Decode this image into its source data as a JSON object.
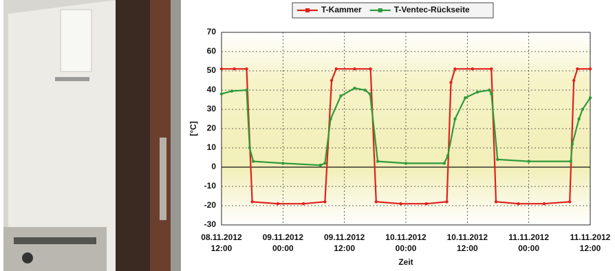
{
  "chart_data": {
    "type": "line",
    "ylabel": "[°C]",
    "xlabel": "Zeit",
    "ylim": [
      -30,
      70
    ],
    "yticks": [
      -30,
      -20,
      -10,
      0,
      10,
      20,
      30,
      40,
      50,
      60,
      70
    ],
    "xlim": [
      "2012-11-08T12:00",
      "2012-11-11T12:00"
    ],
    "xticks": [
      {
        "value": "2012-11-08T12:00",
        "label": "08.11.2012\n12:00"
      },
      {
        "value": "2012-11-09T00:00",
        "label": "09.11.2012\n00:00"
      },
      {
        "value": "2012-11-09T12:00",
        "label": "09.11.2012\n12:00"
      },
      {
        "value": "2012-11-10T00:00",
        "label": "10.11.2012\n00:00"
      },
      {
        "value": "2012-11-10T12:00",
        "label": "10.11.2012\n12:00"
      },
      {
        "value": "2012-11-11T00:00",
        "label": "11.11.2012\n00:00"
      },
      {
        "value": "2012-11-11T12:00",
        "label": "11.11.2012\n12:00"
      }
    ],
    "grid": true,
    "series": [
      {
        "name": "T-Kammer",
        "color": "#e0201c",
        "x": [
          "2012-11-08T12:00",
          "2012-11-08T14:30",
          "2012-11-08T16:54",
          "2012-11-08T18:00",
          "2012-11-08T23:00",
          "2012-11-09T04:00",
          "2012-11-09T08:12",
          "2012-11-09T09:30",
          "2012-11-09T10:24",
          "2012-11-09T14:00",
          "2012-11-09T17:06",
          "2012-11-09T18:12",
          "2012-11-09T23:00",
          "2012-11-10T04:00",
          "2012-11-10T08:00",
          "2012-11-10T08:48",
          "2012-11-10T09:36",
          "2012-11-10T13:00",
          "2012-11-10T16:42",
          "2012-11-10T17:36",
          "2012-11-10T22:00",
          "2012-11-11T03:00",
          "2012-11-11T08:00",
          "2012-11-11T08:48",
          "2012-11-11T09:30",
          "2012-11-11T12:00"
        ],
        "values": [
          51,
          51,
          51,
          -18,
          -19,
          -19,
          -18,
          45,
          51,
          51,
          51,
          -18,
          -19,
          -19,
          -18,
          44,
          51,
          51,
          51,
          -18,
          -19,
          -19,
          -18,
          45,
          51,
          51
        ]
      },
      {
        "name": "T-Ventec-Rückseite",
        "color": "#2e9a3a",
        "x": [
          "2012-11-08T12:00",
          "2012-11-08T14:00",
          "2012-11-08T16:54",
          "2012-11-08T17:30",
          "2012-11-08T18:12",
          "2012-11-09T00:00",
          "2012-11-09T07:18",
          "2012-11-09T08:12",
          "2012-11-09T09:18",
          "2012-11-09T11:18",
          "2012-11-09T14:00",
          "2012-11-09T16:00",
          "2012-11-09T17:00",
          "2012-11-09T18:30",
          "2012-11-10T00:00",
          "2012-11-10T07:30",
          "2012-11-10T08:12",
          "2012-11-10T09:36",
          "2012-11-10T11:36",
          "2012-11-10T14:00",
          "2012-11-10T16:18",
          "2012-11-10T16:42",
          "2012-11-10T17:54",
          "2012-11-11T00:00",
          "2012-11-11T08:12",
          "2012-11-11T08:30",
          "2012-11-11T09:48",
          "2012-11-11T10:30",
          "2012-11-11T12:00"
        ],
        "values": [
          38,
          39.5,
          40,
          10,
          3,
          2,
          1,
          2,
          25,
          37,
          41,
          40,
          38,
          3,
          2,
          2,
          6,
          25,
          36,
          39,
          40,
          38,
          4,
          3,
          3,
          12,
          25,
          30,
          36
        ]
      }
    ]
  }
}
